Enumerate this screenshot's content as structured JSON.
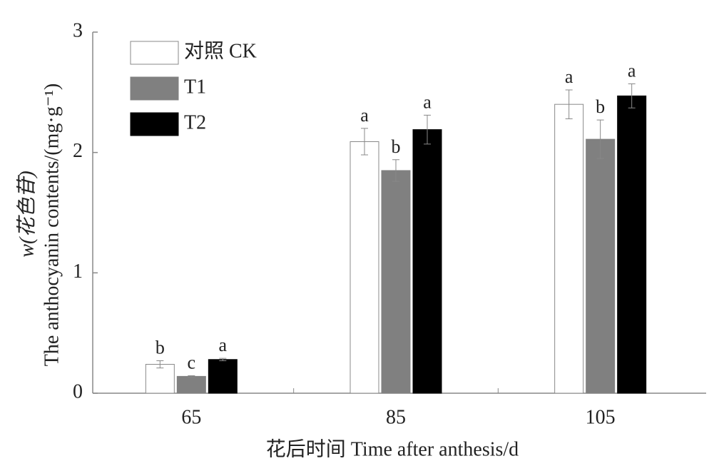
{
  "chart_data": {
    "type": "bar",
    "xlabel": "花后时间 Time after anthesis/d",
    "ylabel_top": "w(花色苷)",
    "ylabel": "The anthocyanin contents/(mg·g⁻¹)",
    "categories": [
      "65",
      "85",
      "105"
    ],
    "series": [
      {
        "name": "对照 CK",
        "color": "#ffffff",
        "values": [
          0.24,
          2.09,
          2.4
        ],
        "errors": [
          0.03,
          0.11,
          0.12
        ],
        "significance": [
          "b",
          "a",
          "a"
        ]
      },
      {
        "name": "T1",
        "color": "#808080",
        "values": [
          0.14,
          1.85,
          2.11
        ],
        "errors": [
          0.005,
          0.09,
          0.16
        ],
        "significance": [
          "c",
          "b",
          "b"
        ]
      },
      {
        "name": "T2",
        "color": "#000000",
        "values": [
          0.28,
          2.19,
          2.47
        ],
        "errors": [
          0.01,
          0.12,
          0.1
        ],
        "significance": [
          "a",
          "a",
          "a"
        ]
      }
    ],
    "ylim": [
      0,
      3
    ],
    "yticks": [
      0,
      1,
      2,
      3
    ],
    "legend": "upper left"
  }
}
